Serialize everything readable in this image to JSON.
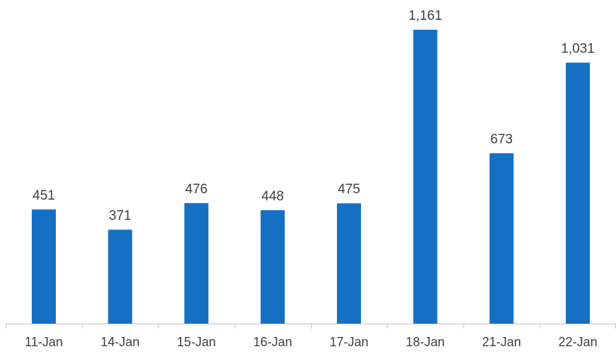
{
  "chart_data": {
    "type": "bar",
    "title": "",
    "xlabel": "",
    "ylabel": "",
    "categories": [
      "11-Jan",
      "14-Jan",
      "15-Jan",
      "16-Jan",
      "17-Jan",
      "18-Jan",
      "21-Jan",
      "22-Jan"
    ],
    "values": [
      451,
      371,
      476,
      448,
      475,
      1161,
      673,
      1031
    ],
    "value_labels": [
      "451",
      "371",
      "476",
      "448",
      "475",
      "1,161",
      "673",
      "1,031"
    ],
    "ylim": [
      0,
      1161
    ],
    "grid": false,
    "legend": "none",
    "colors": {
      "bar": "#1570C4",
      "axis": "#BFBFBF",
      "text": "#404040"
    }
  }
}
